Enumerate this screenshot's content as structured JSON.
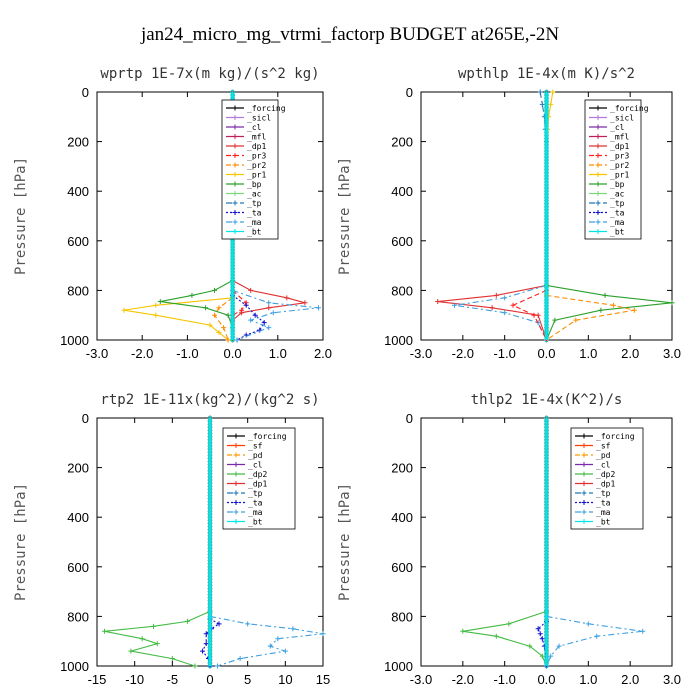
{
  "figure": {
    "title": "jan24_micro_mg_vtrmi_factorp  BUDGET at265E,-2N",
    "ylabel": "Pressure [hPa]"
  },
  "colors": {
    "_forcing": "#000000",
    "_sicl": "#b37ad9",
    "_cl": "#7a2aa8",
    "_mfl": "#c0205a",
    "_dp1": "#e03030",
    "_pr3": "#ff2020",
    "_pr2": "#ff8c00",
    "_pr1": "#f5c400",
    "_bp": "#2ca02c",
    "_ac": "#7fd67f",
    "_tp": "#1f77b4",
    "_ta": "#1010d0",
    "_ma": "#3fa0e0",
    "_bt": "#00e5e5",
    "_sf": "#ff4000",
    "_pd": "#ff9900",
    "_dp2": "#44bb44"
  },
  "chart_data": [
    {
      "type": "line",
      "title": "wprtp  1E-7x(m kg)/(s^2 kg)",
      "ylabel": "Pressure [hPa]",
      "xlim": [
        -3.0,
        2.0
      ],
      "ylim": [
        1000,
        0
      ],
      "xticks": [
        -3.0,
        -2.0,
        -1.0,
        0.0,
        1.0,
        2.0
      ],
      "xtick_labels": [
        "-3.0",
        "-2.0",
        "-1.0",
        "0.0",
        "1.0",
        "2.0"
      ],
      "yticks": [
        0,
        200,
        400,
        600,
        800,
        1000
      ],
      "legend": [
        "_forcing",
        "_sicl",
        "_cl",
        "_mfl",
        "_dp1",
        "_pr3",
        "_pr2",
        "_pr1",
        "_bp",
        "_ac",
        "_tp",
        "_ta",
        "_ma",
        "_bt"
      ],
      "series": [
        {
          "name": "_forcing",
          "y": [
            0,
            1000
          ],
          "x": [
            0,
            0
          ]
        },
        {
          "name": "_dp1",
          "y": [
            760,
            800,
            830,
            850,
            870,
            890,
            920,
            1000
          ],
          "x": [
            0.0,
            0.4,
            1.2,
            1.6,
            0.8,
            0.2,
            0.0,
            0.0
          ]
        },
        {
          "name": "_pr3",
          "y": [
            800,
            850,
            880,
            900,
            1000
          ],
          "x": [
            0.0,
            0.3,
            0.2,
            0.0,
            0.0
          ]
        },
        {
          "name": "_pr1",
          "y": [
            830,
            860,
            880,
            900,
            940,
            970,
            1000
          ],
          "x": [
            0.0,
            -1.7,
            -2.4,
            -1.7,
            -0.5,
            -0.3,
            -0.1
          ]
        },
        {
          "name": "_pr2",
          "y": [
            830,
            870,
            900,
            950,
            1000
          ],
          "x": [
            0.0,
            -0.3,
            -0.4,
            -0.2,
            -0.1
          ]
        },
        {
          "name": "_bp",
          "y": [
            760,
            800,
            820,
            845,
            870,
            900,
            950,
            1000
          ],
          "x": [
            0.0,
            -0.4,
            -0.9,
            -1.6,
            -0.6,
            -0.1,
            0.0,
            0.0
          ]
        },
        {
          "name": "_ta",
          "y": [
            820,
            860,
            900,
            930,
            960,
            980,
            1000
          ],
          "x": [
            0.0,
            0.3,
            0.5,
            0.7,
            0.6,
            0.3,
            0.1
          ]
        },
        {
          "name": "_ma",
          "y": [
            800,
            850,
            870,
            890,
            920,
            950,
            1000
          ],
          "x": [
            0.0,
            0.8,
            1.9,
            0.9,
            0.4,
            0.8,
            0.1
          ]
        },
        {
          "name": "_bt",
          "y": [
            0,
            1000
          ],
          "x": [
            0,
            0
          ]
        }
      ]
    },
    {
      "type": "line",
      "title": "wpthlp  1E-4x(m K)/s^2",
      "ylabel": "Pressure [hPa]",
      "xlim": [
        -3.0,
        3.0
      ],
      "ylim": [
        1000,
        0
      ],
      "xticks": [
        -3.0,
        -2.0,
        -1.0,
        0.0,
        1.0,
        2.0,
        3.0
      ],
      "xtick_labels": [
        "-3.0",
        "-2.0",
        "-1.0",
        "0.0",
        "1.0",
        "2.0",
        "3.0"
      ],
      "yticks": [
        0,
        200,
        400,
        600,
        800,
        1000
      ],
      "legend": [
        "_forcing",
        "_sicl",
        "_cl",
        "_mfl",
        "_dp1",
        "_pr3",
        "_pr2",
        "_pr1",
        "_bp",
        "_ac",
        "_tp",
        "_ta",
        "_ma",
        "_bt"
      ],
      "series": [
        {
          "name": "_forcing",
          "y": [
            0,
            1000
          ],
          "x": [
            0,
            0
          ]
        },
        {
          "name": "_pr1",
          "y": [
            0,
            50,
            100,
            150,
            200
          ],
          "x": [
            0.15,
            0.1,
            0.05,
            0.03,
            0.0
          ]
        },
        {
          "name": "_tp",
          "y": [
            0,
            50,
            100,
            150,
            200
          ],
          "x": [
            -0.15,
            -0.1,
            -0.05,
            -0.03,
            0.0
          ]
        },
        {
          "name": "_dp1",
          "y": [
            780,
            820,
            845,
            870,
            900,
            1000
          ],
          "x": [
            0.0,
            -1.2,
            -2.6,
            -1.3,
            -0.2,
            0.0
          ]
        },
        {
          "name": "_ma",
          "y": [
            780,
            830,
            860,
            890,
            930,
            1000
          ],
          "x": [
            0.0,
            -1.0,
            -2.2,
            -1.0,
            -0.2,
            0.0
          ]
        },
        {
          "name": "_bp",
          "y": [
            780,
            820,
            850,
            880,
            920,
            1000
          ],
          "x": [
            0.0,
            1.4,
            3.0,
            1.3,
            0.2,
            0.0
          ]
        },
        {
          "name": "_pr2",
          "y": [
            820,
            860,
            880,
            920,
            1000
          ],
          "x": [
            0.0,
            1.6,
            2.1,
            0.7,
            0.0
          ]
        },
        {
          "name": "_pr3",
          "y": [
            800,
            860,
            900,
            1000
          ],
          "x": [
            0.0,
            -0.8,
            -0.3,
            0.0
          ]
        },
        {
          "name": "_bt",
          "y": [
            0,
            1000
          ],
          "x": [
            0,
            0
          ]
        }
      ]
    },
    {
      "type": "line",
      "title": "rtp2  1E-11x(kg^2)/(kg^2 s)",
      "ylabel": "Pressure [hPa]",
      "xlim": [
        -15,
        15
      ],
      "ylim": [
        1000,
        0
      ],
      "xticks": [
        -15,
        -10,
        -5,
        0,
        5,
        10,
        15
      ],
      "xtick_labels": [
        "-15",
        "-10",
        "-5",
        "0",
        "5",
        "10",
        "15"
      ],
      "yticks": [
        0,
        200,
        400,
        600,
        800,
        1000
      ],
      "legend": [
        "_forcing",
        "_sf",
        "_pd",
        "_cl",
        "_dp2",
        "_dp1",
        "_tp",
        "_ta",
        "_ma",
        "_bt"
      ],
      "series": [
        {
          "name": "_forcing",
          "y": [
            0,
            1000
          ],
          "x": [
            0,
            0
          ]
        },
        {
          "name": "_dp1",
          "y": [
            0,
            1000
          ],
          "x": [
            0,
            0
          ]
        },
        {
          "name": "_dp2",
          "y": [
            780,
            820,
            840,
            860,
            890,
            910,
            940,
            970,
            1000
          ],
          "x": [
            0.0,
            -3.0,
            -7.5,
            -14.0,
            -9.0,
            -7.0,
            -10.5,
            -5.0,
            -2.0
          ]
        },
        {
          "name": "_ma",
          "y": [
            800,
            830,
            850,
            870,
            890,
            920,
            940,
            970,
            1000
          ],
          "x": [
            0.0,
            5.0,
            11.0,
            15.0,
            9.0,
            8.0,
            10.0,
            4.0,
            1.0
          ]
        },
        {
          "name": "_ta",
          "y": [
            810,
            830,
            850,
            870,
            910,
            940,
            970,
            1000
          ],
          "x": [
            0.0,
            1.2,
            0.2,
            -0.5,
            -0.5,
            -1.0,
            -0.2,
            0.0
          ]
        },
        {
          "name": "_bt",
          "y": [
            0,
            1000
          ],
          "x": [
            0,
            0
          ]
        }
      ]
    },
    {
      "type": "line",
      "title": "thlp2  1E-4x(K^2)/s",
      "ylabel": "Pressure [hPa]",
      "xlim": [
        -3.0,
        3.0
      ],
      "ylim": [
        1000,
        0
      ],
      "xticks": [
        -3.0,
        -2.0,
        -1.0,
        0.0,
        1.0,
        2.0,
        3.0
      ],
      "xtick_labels": [
        "-3.0",
        "-2.0",
        "-1.0",
        "0.0",
        "1.0",
        "2.0",
        "3.0"
      ],
      "yticks": [
        0,
        200,
        400,
        600,
        800,
        1000
      ],
      "legend": [
        "_forcing",
        "_sf",
        "_pd",
        "_cl",
        "_dp2",
        "_dp1",
        "_tp",
        "_ta",
        "_ma",
        "_bt"
      ],
      "series": [
        {
          "name": "_forcing",
          "y": [
            0,
            1000
          ],
          "x": [
            0,
            0
          ]
        },
        {
          "name": "_dp1",
          "y": [
            0,
            1000
          ],
          "x": [
            0,
            0
          ]
        },
        {
          "name": "_dp2",
          "y": [
            780,
            830,
            860,
            880,
            920,
            960,
            1000
          ],
          "x": [
            0.0,
            -0.9,
            -2.0,
            -1.2,
            -0.4,
            -0.1,
            0.0
          ]
        },
        {
          "name": "_ma",
          "y": [
            800,
            830,
            860,
            880,
            920,
            960,
            1000
          ],
          "x": [
            0.0,
            1.0,
            2.3,
            1.2,
            0.3,
            0.1,
            0.0
          ]
        },
        {
          "name": "_ta",
          "y": [
            820,
            850,
            870,
            890,
            920,
            1000
          ],
          "x": [
            0.0,
            -0.2,
            -0.15,
            -0.1,
            -0.05,
            0.0
          ]
        },
        {
          "name": "_bt",
          "y": [
            0,
            1000
          ],
          "x": [
            0,
            0
          ]
        }
      ]
    }
  ]
}
